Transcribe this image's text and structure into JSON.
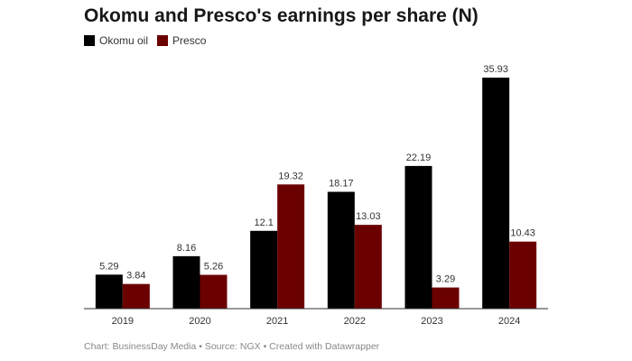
{
  "chart_data": {
    "type": "bar",
    "title": "Okomu and Presco's earnings per share (N)",
    "categories": [
      "2019",
      "2020",
      "2021",
      "2022",
      "2023",
      "2024"
    ],
    "series": [
      {
        "name": "Okomu oil",
        "color": "#000000",
        "values": [
          5.29,
          8.16,
          12.1,
          18.17,
          22.19,
          35.93
        ],
        "labels": [
          "5.29",
          "8.16",
          "12.1",
          "18.17",
          "22.19",
          "35.93"
        ]
      },
      {
        "name": "Presco",
        "color": "#6b0000",
        "values": [
          3.84,
          5.26,
          19.32,
          13.03,
          3.29,
          10.43
        ],
        "labels": [
          "3.84",
          "5.26",
          "19.32",
          "13.03",
          "3.29",
          "10.43"
        ]
      }
    ],
    "xlabel": "",
    "ylabel": "",
    "ylim": [
      0,
      37
    ]
  },
  "footer": "Chart: BusinessDay Media • Source: NGX • Created with Datawrapper"
}
